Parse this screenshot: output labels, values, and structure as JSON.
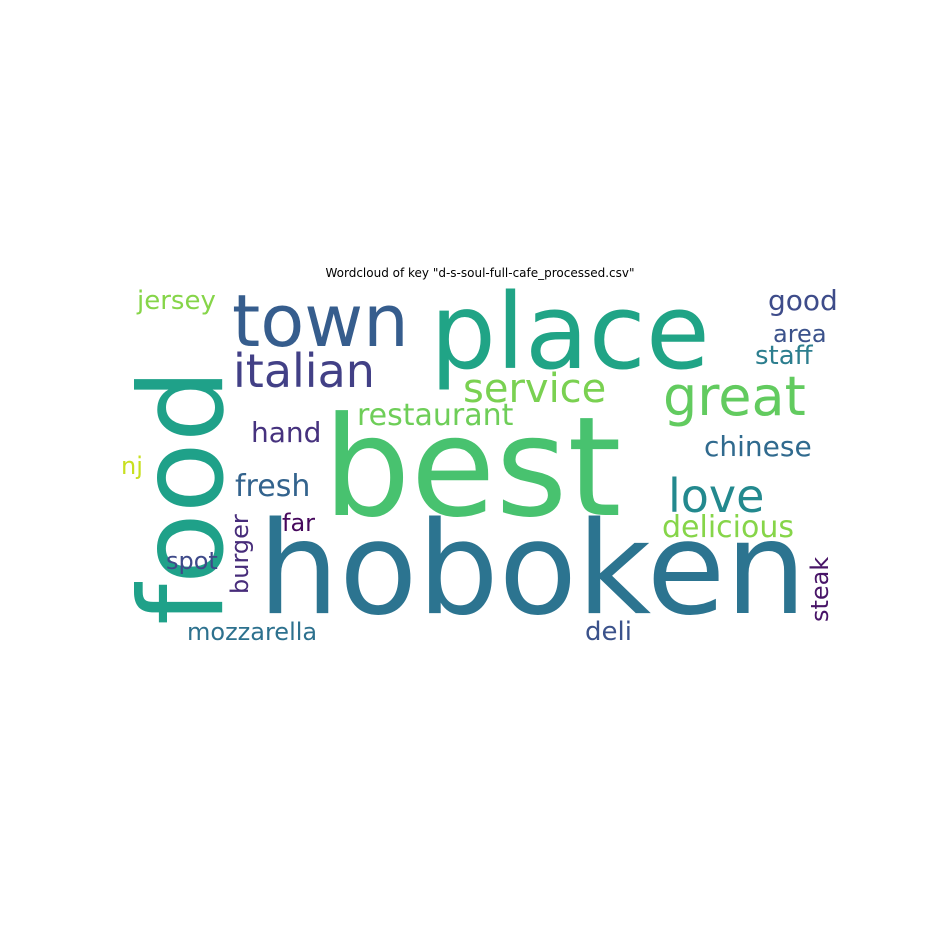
{
  "chart_data": {
    "type": "wordcloud",
    "title": "Wordcloud of key \"d-s-soul-full-cafe_processed.csv\"",
    "words": [
      {
        "text": "hoboken",
        "color": "#2c7490"
      },
      {
        "text": "best",
        "color": "#48c26f"
      },
      {
        "text": "place",
        "color": "#20a486"
      },
      {
        "text": "food",
        "color": "#1fa189"
      },
      {
        "text": "town",
        "color": "#365d8d"
      },
      {
        "text": "great",
        "color": "#62cb5f"
      },
      {
        "text": "italian",
        "color": "#424086"
      },
      {
        "text": "service",
        "color": "#7ad151"
      },
      {
        "text": "love",
        "color": "#23898e"
      },
      {
        "text": "restaurant",
        "color": "#6ece58"
      },
      {
        "text": "delicious",
        "color": "#86d549"
      },
      {
        "text": "chinese",
        "color": "#306a8e"
      },
      {
        "text": "fresh",
        "color": "#33638d"
      },
      {
        "text": "hand",
        "color": "#46327e"
      },
      {
        "text": "good",
        "color": "#3e4c8a"
      },
      {
        "text": "jersey",
        "color": "#86d549"
      },
      {
        "text": "staff",
        "color": "#2c7e8e"
      },
      {
        "text": "area",
        "color": "#3b528b"
      },
      {
        "text": "mozzarella",
        "color": "#2d718e"
      },
      {
        "text": "deli",
        "color": "#3b528b"
      },
      {
        "text": "burger",
        "color": "#472c7a"
      },
      {
        "text": "steak",
        "color": "#481467"
      },
      {
        "text": "spot",
        "color": "#3e4989"
      },
      {
        "text": "far",
        "color": "#46085c"
      },
      {
        "text": "nj",
        "color": "#c8e020"
      }
    ]
  }
}
